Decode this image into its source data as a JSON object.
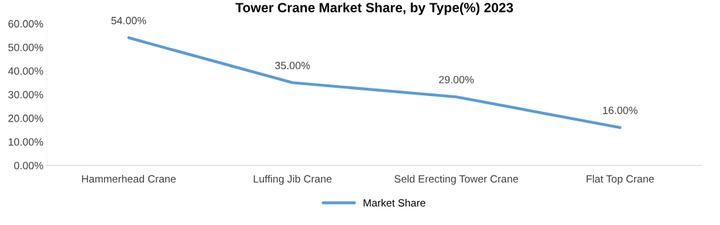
{
  "chart_data": {
    "type": "line",
    "title": "Tower Crane Market Share, by Type(%) 2023",
    "categories": [
      "Hammerhead Crane",
      "Luffing Jib Crane",
      "Seld Erecting Tower Crane",
      "Flat Top Crane"
    ],
    "series": [
      {
        "name": "Market Share",
        "color": "#5b9bd5",
        "values": [
          54,
          35,
          29,
          16
        ],
        "value_labels": [
          "54.00%",
          "35.00%",
          "29.00%",
          "16.00%"
        ]
      }
    ],
    "ylim": [
      0,
      60
    ],
    "yticks": [
      {
        "value": 0,
        "label": "0.00%"
      },
      {
        "value": 10,
        "label": "10.00%"
      },
      {
        "value": 20,
        "label": "20.00%"
      },
      {
        "value": 30,
        "label": "30.00%"
      },
      {
        "value": 40,
        "label": "40.00%"
      },
      {
        "value": 50,
        "label": "50.00%"
      },
      {
        "value": 60,
        "label": "60.00%"
      }
    ],
    "grid": false,
    "legend": "bottom",
    "marker": "none",
    "line_style": "solid"
  }
}
